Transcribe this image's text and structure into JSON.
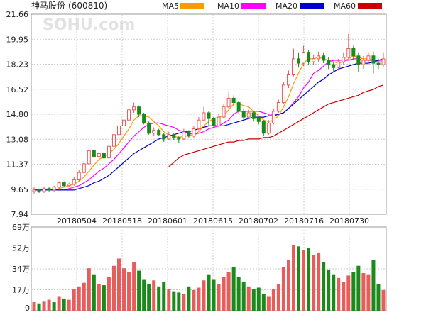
{
  "header": {
    "stock_name": "神马股份",
    "stock_code": "(600810)"
  },
  "watermark": "SOHU.com",
  "legend": [
    {
      "label": "MA5",
      "color": "#ff9900"
    },
    {
      "label": "MA10",
      "color": "#ff00ff"
    },
    {
      "label": "MA20",
      "color": "#0000cc"
    },
    {
      "label": "MA60",
      "color": "#cc0000"
    }
  ],
  "colors": {
    "up": "#e85c5c",
    "down": "#1a8a1a",
    "ma5": "#ff9900",
    "ma10": "#ff00ff",
    "ma20": "#0000cc",
    "ma60": "#cc0000"
  },
  "chart_data": [
    {
      "type": "candlestick",
      "title": "",
      "ylim": [
        7.94,
        21.66
      ],
      "y_ticks": [
        "21.66",
        "19.95",
        "18.23",
        "16.52",
        "14.80",
        "13.08",
        "11.37",
        "9.65",
        "7.94"
      ],
      "x_ticks": [
        "20180504",
        "20180518",
        "20180601",
        "20180615",
        "20180702",
        "20180716",
        "20180730"
      ],
      "grid": true,
      "legend_position": "top",
      "candles": [
        [
          9.5,
          9.6,
          9.8,
          9.3
        ],
        [
          9.6,
          9.5,
          9.7,
          9.4
        ],
        [
          9.5,
          9.7,
          9.8,
          9.4
        ],
        [
          9.7,
          9.6,
          9.8,
          9.5
        ],
        [
          9.6,
          9.8,
          9.9,
          9.5
        ],
        [
          9.8,
          10.1,
          10.2,
          9.7
        ],
        [
          10.1,
          9.9,
          10.2,
          9.8
        ],
        [
          9.9,
          10.0,
          10.1,
          9.8
        ],
        [
          10.0,
          10.3,
          10.5,
          9.9
        ],
        [
          10.3,
          10.8,
          11.0,
          10.2
        ],
        [
          10.8,
          11.4,
          11.6,
          10.7
        ],
        [
          11.4,
          12.3,
          12.5,
          11.3
        ],
        [
          12.3,
          11.9,
          12.4,
          11.8
        ],
        [
          11.9,
          12.1,
          12.2,
          11.8
        ],
        [
          12.1,
          11.8,
          12.2,
          11.7
        ],
        [
          11.8,
          12.6,
          12.8,
          11.7
        ],
        [
          12.6,
          13.4,
          13.6,
          12.5
        ],
        [
          13.4,
          14.0,
          14.2,
          13.3
        ],
        [
          14.0,
          14.4,
          14.6,
          13.9
        ],
        [
          14.4,
          15.1,
          15.5,
          14.3
        ],
        [
          15.1,
          15.3,
          15.6,
          14.9
        ],
        [
          15.3,
          14.8,
          15.4,
          14.6
        ],
        [
          14.8,
          14.2,
          14.9,
          14.1
        ],
        [
          14.2,
          13.5,
          14.3,
          13.4
        ],
        [
          13.5,
          13.7,
          13.9,
          13.3
        ],
        [
          13.7,
          13.4,
          13.8,
          13.3
        ],
        [
          13.4,
          13.1,
          13.5,
          12.9
        ],
        [
          13.1,
          13.4,
          13.6,
          13.0
        ],
        [
          13.4,
          13.2,
          13.5,
          13.0
        ],
        [
          13.2,
          13.1,
          13.3,
          12.8
        ],
        [
          13.1,
          13.6,
          13.8,
          13.0
        ],
        [
          13.6,
          13.3,
          13.7,
          13.2
        ],
        [
          13.3,
          13.8,
          14.0,
          13.2
        ],
        [
          13.8,
          14.4,
          14.6,
          13.7
        ],
        [
          14.4,
          14.9,
          15.3,
          14.3
        ],
        [
          14.9,
          14.5,
          15.0,
          14.0
        ],
        [
          14.5,
          14.0,
          14.6,
          13.9
        ],
        [
          14.0,
          14.6,
          14.8,
          13.9
        ],
        [
          14.6,
          15.3,
          15.5,
          14.5
        ],
        [
          15.3,
          15.9,
          16.3,
          15.2
        ],
        [
          15.9,
          15.6,
          16.1,
          15.4
        ],
        [
          15.6,
          15.0,
          15.7,
          14.8
        ],
        [
          15.0,
          14.6,
          15.2,
          14.4
        ],
        [
          14.6,
          14.9,
          15.1,
          14.5
        ],
        [
          14.9,
          14.5,
          15.0,
          14.3
        ],
        [
          14.5,
          14.3,
          14.6,
          14.1
        ],
        [
          14.3,
          13.5,
          14.4,
          13.3
        ],
        [
          13.5,
          14.2,
          14.4,
          13.4
        ],
        [
          14.2,
          15.0,
          15.2,
          14.1
        ],
        [
          15.0,
          15.6,
          15.8,
          14.9
        ],
        [
          15.6,
          16.8,
          17.0,
          15.5
        ],
        [
          16.8,
          17.5,
          17.8,
          16.6
        ],
        [
          17.5,
          18.6,
          19.3,
          17.4
        ],
        [
          18.6,
          18.3,
          19.0,
          18.0
        ],
        [
          18.3,
          19.0,
          19.5,
          18.1
        ],
        [
          19.0,
          18.4,
          19.2,
          18.2
        ],
        [
          18.4,
          18.6,
          18.9,
          18.2
        ],
        [
          18.6,
          18.8,
          19.1,
          18.4
        ],
        [
          18.8,
          18.5,
          19.0,
          18.3
        ],
        [
          18.5,
          18.2,
          18.7,
          17.9
        ],
        [
          18.2,
          18.0,
          18.4,
          17.7
        ],
        [
          18.0,
          18.4,
          18.6,
          17.8
        ],
        [
          18.4,
          18.7,
          19.0,
          18.2
        ],
        [
          18.7,
          19.3,
          20.3,
          18.6
        ],
        [
          19.3,
          18.8,
          19.5,
          18.5
        ],
        [
          18.8,
          18.2,
          19.0,
          17.7
        ],
        [
          18.2,
          18.5,
          18.8,
          17.9
        ],
        [
          18.5,
          18.8,
          19.0,
          18.2
        ],
        [
          18.8,
          18.3,
          19.1,
          17.6
        ],
        [
          18.3,
          18.2,
          18.6,
          17.9
        ],
        [
          18.2,
          18.6,
          19.0,
          18.0
        ]
      ],
      "series": [
        {
          "name": "MA5",
          "values": [
            9.6,
            9.6,
            9.6,
            9.6,
            9.6,
            9.7,
            9.8,
            9.9,
            10.0,
            10.2,
            10.5,
            10.9,
            11.3,
            11.7,
            11.9,
            12.1,
            12.4,
            12.8,
            13.3,
            13.8,
            14.4,
            14.7,
            14.7,
            14.6,
            14.3,
            14.0,
            13.6,
            13.4,
            13.3,
            13.2,
            13.3,
            13.3,
            13.4,
            13.6,
            14.0,
            14.3,
            14.5,
            14.6,
            14.7,
            15.1,
            15.5,
            15.5,
            15.4,
            15.3,
            15.0,
            14.7,
            14.4,
            14.3,
            14.4,
            14.7,
            15.3,
            16.0,
            16.9,
            17.6,
            18.3,
            18.6,
            18.6,
            18.7,
            18.6,
            18.5,
            18.4,
            18.3,
            18.4,
            18.6,
            18.8,
            18.7,
            18.6,
            18.6,
            18.5,
            18.4,
            18.4
          ]
        },
        {
          "name": "MA10",
          "values": [
            9.6,
            9.6,
            9.6,
            9.6,
            9.6,
            9.6,
            9.6,
            9.7,
            9.8,
            9.9,
            10.1,
            10.3,
            10.6,
            10.9,
            11.1,
            11.4,
            11.7,
            12.1,
            12.5,
            12.9,
            13.3,
            13.6,
            13.9,
            14.1,
            14.2,
            14.2,
            14.1,
            14.0,
            13.9,
            13.7,
            13.6,
            13.5,
            13.4,
            13.5,
            13.6,
            13.8,
            13.9,
            14.0,
            14.2,
            14.4,
            14.8,
            15.0,
            15.0,
            15.0,
            15.0,
            15.0,
            14.9,
            14.8,
            14.8,
            14.8,
            14.9,
            15.2,
            15.6,
            16.0,
            16.6,
            17.0,
            17.6,
            17.8,
            18.1,
            18.4,
            18.5,
            18.5,
            18.5,
            18.5,
            18.6,
            18.6,
            18.5,
            18.5,
            18.5,
            18.5,
            18.5
          ]
        },
        {
          "name": "MA20",
          "values": [
            9.6,
            9.6,
            9.6,
            9.6,
            9.6,
            9.6,
            9.6,
            9.6,
            9.6,
            9.7,
            9.8,
            9.9,
            10.1,
            10.2,
            10.4,
            10.6,
            10.9,
            11.2,
            11.5,
            11.8,
            12.1,
            12.3,
            12.5,
            12.7,
            12.9,
            13.1,
            13.2,
            13.3,
            13.4,
            13.5,
            13.6,
            13.6,
            13.7,
            13.8,
            13.9,
            14.0,
            14.0,
            14.0,
            14.0,
            14.1,
            14.2,
            14.3,
            14.4,
            14.5,
            14.6,
            14.6,
            14.6,
            14.7,
            14.7,
            14.8,
            14.9,
            15.2,
            15.5,
            15.8,
            16.1,
            16.4,
            16.7,
            17.0,
            17.2,
            17.5,
            17.7,
            17.9,
            18.0,
            18.1,
            18.2,
            18.3,
            18.3,
            18.3,
            18.4,
            18.5,
            18.6
          ]
        },
        {
          "name": "MA60",
          "values": [
            null,
            null,
            null,
            null,
            null,
            null,
            null,
            null,
            null,
            null,
            null,
            null,
            null,
            null,
            null,
            null,
            null,
            null,
            null,
            null,
            null,
            null,
            null,
            null,
            null,
            null,
            null,
            11.2,
            11.5,
            11.8,
            12.0,
            12.1,
            12.2,
            12.3,
            12.4,
            12.5,
            12.6,
            12.7,
            12.8,
            12.9,
            12.9,
            13.0,
            13.0,
            13.1,
            13.1,
            13.1,
            13.2,
            13.2,
            13.3,
            13.5,
            13.7,
            13.9,
            14.1,
            14.3,
            14.5,
            14.7,
            14.9,
            15.1,
            15.3,
            15.5,
            15.6,
            15.7,
            15.8,
            15.9,
            16.0,
            16.1,
            16.3,
            16.4,
            16.5,
            16.7,
            16.8
          ]
        }
      ]
    },
    {
      "type": "bar",
      "title": "",
      "unit": "万",
      "ylim": [
        0,
        69
      ],
      "y_ticks": [
        "69万",
        "52万",
        "34万",
        "17万",
        "0"
      ],
      "values": [
        7,
        6,
        8,
        9,
        7,
        12,
        10,
        9,
        18,
        20,
        23,
        35,
        30,
        22,
        21,
        28,
        37,
        43,
        35,
        32,
        40,
        33,
        26,
        22,
        25,
        20,
        24,
        18,
        16,
        15,
        14,
        20,
        17,
        19,
        25,
        30,
        26,
        22,
        28,
        32,
        36,
        28,
        24,
        20,
        18,
        19,
        14,
        12,
        18,
        22,
        36,
        42,
        54,
        53,
        50,
        52,
        46,
        48,
        40,
        34,
        30,
        27,
        24,
        29,
        32,
        37,
        31,
        30,
        42,
        22,
        17
      ],
      "directions": [
        1,
        0,
        1,
        1,
        0,
        1,
        0,
        1,
        1,
        1,
        1,
        1,
        0,
        1,
        0,
        1,
        1,
        1,
        1,
        1,
        1,
        0,
        0,
        0,
        1,
        0,
        0,
        1,
        0,
        0,
        1,
        0,
        1,
        1,
        1,
        0,
        0,
        1,
        1,
        1,
        0,
        0,
        0,
        1,
        0,
        0,
        0,
        1,
        1,
        1,
        1,
        1,
        1,
        0,
        1,
        0,
        1,
        1,
        0,
        0,
        0,
        1,
        1,
        1,
        0,
        0,
        1,
        1,
        0,
        0,
        1
      ]
    }
  ]
}
